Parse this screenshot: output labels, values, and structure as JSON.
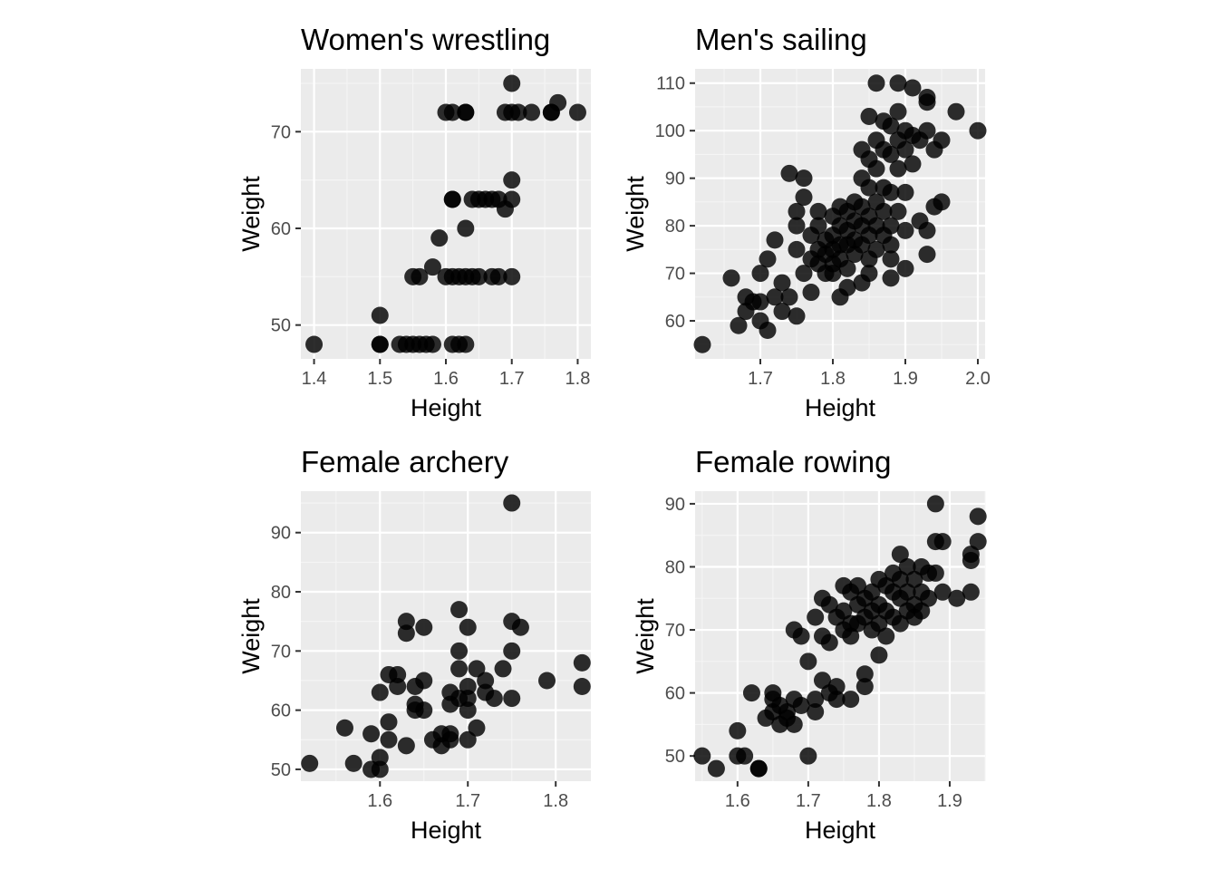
{
  "chart_data": [
    {
      "type": "scatter",
      "title": "Women's wrestling",
      "xlabel": "Height",
      "ylabel": "Weight",
      "xlim": [
        1.38,
        1.82
      ],
      "ylim": [
        46.5,
        76.5
      ],
      "xticks": [
        1.4,
        1.5,
        1.6,
        1.7,
        1.8
      ],
      "yticks": [
        50,
        60,
        70
      ],
      "xtick_labels": [
        "1.4",
        "1.5",
        "1.6",
        "1.7",
        "1.8"
      ],
      "ytick_labels": [
        "50",
        "60",
        "70"
      ],
      "grid": true,
      "points": [
        [
          1.4,
          48
        ],
        [
          1.5,
          48
        ],
        [
          1.5,
          51
        ],
        [
          1.5,
          48
        ],
        [
          1.53,
          48
        ],
        [
          1.54,
          48
        ],
        [
          1.55,
          48
        ],
        [
          1.56,
          48
        ],
        [
          1.57,
          48
        ],
        [
          1.58,
          48
        ],
        [
          1.61,
          48
        ],
        [
          1.62,
          48
        ],
        [
          1.63,
          48
        ],
        [
          1.55,
          55
        ],
        [
          1.56,
          55
        ],
        [
          1.58,
          56
        ],
        [
          1.59,
          59
        ],
        [
          1.6,
          55
        ],
        [
          1.61,
          55
        ],
        [
          1.62,
          55
        ],
        [
          1.63,
          55
        ],
        [
          1.64,
          55
        ],
        [
          1.65,
          55
        ],
        [
          1.67,
          55
        ],
        [
          1.68,
          55
        ],
        [
          1.7,
          55
        ],
        [
          1.63,
          60
        ],
        [
          1.61,
          63
        ],
        [
          1.61,
          63
        ],
        [
          1.64,
          63
        ],
        [
          1.65,
          63
        ],
        [
          1.66,
          63
        ],
        [
          1.67,
          63
        ],
        [
          1.68,
          63
        ],
        [
          1.69,
          62
        ],
        [
          1.7,
          63
        ],
        [
          1.7,
          65
        ],
        [
          1.6,
          72
        ],
        [
          1.61,
          72
        ],
        [
          1.63,
          72
        ],
        [
          1.63,
          72
        ],
        [
          1.69,
          72
        ],
        [
          1.7,
          72
        ],
        [
          1.7,
          75
        ],
        [
          1.71,
          72
        ],
        [
          1.73,
          72
        ],
        [
          1.76,
          72
        ],
        [
          1.76,
          72
        ],
        [
          1.77,
          73
        ],
        [
          1.8,
          72
        ]
      ]
    },
    {
      "type": "scatter",
      "title": "Men's sailing",
      "xlabel": "Height",
      "ylabel": "Weight",
      "xlim": [
        1.61,
        2.01
      ],
      "ylim": [
        52,
        113
      ],
      "xticks": [
        1.7,
        1.8,
        1.9,
        2.0
      ],
      "yticks": [
        60,
        70,
        80,
        90,
        100,
        110
      ],
      "xtick_labels": [
        "1.7",
        "1.8",
        "1.9",
        "2.0"
      ],
      "ytick_labels": [
        "60",
        "70",
        "80",
        "90",
        "100",
        "110"
      ],
      "grid": true,
      "points": [
        [
          1.62,
          55
        ],
        [
          1.66,
          69
        ],
        [
          1.67,
          59
        ],
        [
          1.68,
          62
        ],
        [
          1.68,
          65
        ],
        [
          1.69,
          64
        ],
        [
          1.7,
          60
        ],
        [
          1.7,
          64
        ],
        [
          1.7,
          70
        ],
        [
          1.71,
          58
        ],
        [
          1.71,
          73
        ],
        [
          1.72,
          77
        ],
        [
          1.72,
          65
        ],
        [
          1.73,
          62
        ],
        [
          1.73,
          68
        ],
        [
          1.74,
          65
        ],
        [
          1.74,
          91
        ],
        [
          1.75,
          83
        ],
        [
          1.75,
          80
        ],
        [
          1.75,
          75
        ],
        [
          1.75,
          61
        ],
        [
          1.76,
          90
        ],
        [
          1.76,
          86
        ],
        [
          1.76,
          70
        ],
        [
          1.77,
          78
        ],
        [
          1.77,
          73
        ],
        [
          1.77,
          66
        ],
        [
          1.78,
          83
        ],
        [
          1.78,
          80
        ],
        [
          1.78,
          75
        ],
        [
          1.78,
          72
        ],
        [
          1.79,
          77
        ],
        [
          1.79,
          74
        ],
        [
          1.79,
          70
        ],
        [
          1.8,
          82
        ],
        [
          1.8,
          78
        ],
        [
          1.8,
          75
        ],
        [
          1.8,
          72
        ],
        [
          1.8,
          70
        ],
        [
          1.81,
          84
        ],
        [
          1.81,
          80
        ],
        [
          1.81,
          76
        ],
        [
          1.81,
          73
        ],
        [
          1.81,
          65
        ],
        [
          1.82,
          83
        ],
        [
          1.82,
          79
        ],
        [
          1.82,
          76
        ],
        [
          1.82,
          71
        ],
        [
          1.82,
          67
        ],
        [
          1.83,
          85
        ],
        [
          1.83,
          81
        ],
        [
          1.83,
          77
        ],
        [
          1.83,
          74
        ],
        [
          1.84,
          96
        ],
        [
          1.84,
          90
        ],
        [
          1.84,
          84
        ],
        [
          1.84,
          80
        ],
        [
          1.84,
          76
        ],
        [
          1.84,
          68
        ],
        [
          1.85,
          103
        ],
        [
          1.85,
          94
        ],
        [
          1.85,
          88
        ],
        [
          1.85,
          82
        ],
        [
          1.85,
          78
        ],
        [
          1.85,
          73
        ],
        [
          1.85,
          70
        ],
        [
          1.86,
          110
        ],
        [
          1.86,
          98
        ],
        [
          1.86,
          92
        ],
        [
          1.86,
          85
        ],
        [
          1.86,
          80
        ],
        [
          1.86,
          75
        ],
        [
          1.87,
          102
        ],
        [
          1.87,
          96
        ],
        [
          1.87,
          88
        ],
        [
          1.87,
          83
        ],
        [
          1.87,
          78
        ],
        [
          1.88,
          101
        ],
        [
          1.88,
          95
        ],
        [
          1.88,
          87
        ],
        [
          1.88,
          80
        ],
        [
          1.88,
          76
        ],
        [
          1.88,
          73
        ],
        [
          1.88,
          69
        ],
        [
          1.89,
          110
        ],
        [
          1.89,
          104
        ],
        [
          1.89,
          98
        ],
        [
          1.89,
          92
        ],
        [
          1.89,
          83
        ],
        [
          1.9,
          100
        ],
        [
          1.9,
          96
        ],
        [
          1.9,
          87
        ],
        [
          1.9,
          79
        ],
        [
          1.9,
          71
        ],
        [
          1.91,
          109
        ],
        [
          1.91,
          99
        ],
        [
          1.91,
          93
        ],
        [
          1.92,
          98
        ],
        [
          1.92,
          81
        ],
        [
          1.93,
          107
        ],
        [
          1.93,
          106
        ],
        [
          1.93,
          100
        ],
        [
          1.93,
          79
        ],
        [
          1.93,
          74
        ],
        [
          1.94,
          96
        ],
        [
          1.94,
          84
        ],
        [
          1.95,
          98
        ],
        [
          1.95,
          85
        ],
        [
          1.97,
          104
        ],
        [
          2.0,
          100
        ]
      ]
    },
    {
      "type": "scatter",
      "title": "Female archery",
      "xlabel": "Height",
      "ylabel": "Weight",
      "xlim": [
        1.51,
        1.84
      ],
      "ylim": [
        48,
        97
      ],
      "xticks": [
        1.6,
        1.7,
        1.8
      ],
      "yticks": [
        50,
        60,
        70,
        80,
        90
      ],
      "xtick_labels": [
        "1.6",
        "1.7",
        "1.8"
      ],
      "ytick_labels": [
        "50",
        "60",
        "70",
        "80",
        "90"
      ],
      "grid": true,
      "points": [
        [
          1.52,
          51
        ],
        [
          1.56,
          57
        ],
        [
          1.57,
          51
        ],
        [
          1.59,
          56
        ],
        [
          1.59,
          50
        ],
        [
          1.6,
          63
        ],
        [
          1.6,
          52
        ],
        [
          1.6,
          50
        ],
        [
          1.61,
          66
        ],
        [
          1.61,
          58
        ],
        [
          1.61,
          55
        ],
        [
          1.62,
          66
        ],
        [
          1.62,
          64
        ],
        [
          1.63,
          75
        ],
        [
          1.63,
          73
        ],
        [
          1.63,
          54
        ],
        [
          1.64,
          64
        ],
        [
          1.64,
          61
        ],
        [
          1.64,
          60
        ],
        [
          1.65,
          74
        ],
        [
          1.65,
          65
        ],
        [
          1.65,
          60
        ],
        [
          1.66,
          55
        ],
        [
          1.67,
          56
        ],
        [
          1.67,
          54
        ],
        [
          1.68,
          63
        ],
        [
          1.68,
          61
        ],
        [
          1.68,
          56
        ],
        [
          1.68,
          55
        ],
        [
          1.69,
          77
        ],
        [
          1.69,
          70
        ],
        [
          1.69,
          67
        ],
        [
          1.69,
          62
        ],
        [
          1.7,
          74
        ],
        [
          1.7,
          64
        ],
        [
          1.7,
          62
        ],
        [
          1.7,
          60
        ],
        [
          1.7,
          55
        ],
        [
          1.71,
          67
        ],
        [
          1.71,
          57
        ],
        [
          1.72,
          65
        ],
        [
          1.72,
          63
        ],
        [
          1.73,
          62
        ],
        [
          1.74,
          67
        ],
        [
          1.75,
          95
        ],
        [
          1.75,
          75
        ],
        [
          1.75,
          70
        ],
        [
          1.75,
          62
        ],
        [
          1.76,
          74
        ],
        [
          1.79,
          65
        ],
        [
          1.83,
          68
        ],
        [
          1.83,
          64
        ]
      ]
    },
    {
      "type": "scatter",
      "title": "Female rowing",
      "xlabel": "Height",
      "ylabel": "Weight",
      "xlim": [
        1.54,
        1.95
      ],
      "ylim": [
        46,
        92
      ],
      "xticks": [
        1.6,
        1.7,
        1.8,
        1.9
      ],
      "yticks": [
        50,
        60,
        70,
        80,
        90
      ],
      "xtick_labels": [
        "1.6",
        "1.7",
        "1.8",
        "1.9"
      ],
      "ytick_labels": [
        "50",
        "60",
        "70",
        "80",
        "90"
      ],
      "grid": true,
      "points": [
        [
          1.55,
          50
        ],
        [
          1.57,
          48
        ],
        [
          1.6,
          54
        ],
        [
          1.6,
          50
        ],
        [
          1.61,
          50
        ],
        [
          1.62,
          60
        ],
        [
          1.63,
          48
        ],
        [
          1.63,
          48
        ],
        [
          1.64,
          56
        ],
        [
          1.65,
          60
        ],
        [
          1.65,
          59
        ],
        [
          1.65,
          57
        ],
        [
          1.66,
          58
        ],
        [
          1.66,
          55
        ],
        [
          1.67,
          57
        ],
        [
          1.67,
          56
        ],
        [
          1.68,
          70
        ],
        [
          1.68,
          59
        ],
        [
          1.68,
          55
        ],
        [
          1.69,
          58
        ],
        [
          1.69,
          69
        ],
        [
          1.7,
          65
        ],
        [
          1.7,
          50
        ],
        [
          1.71,
          59
        ],
        [
          1.71,
          57
        ],
        [
          1.71,
          72
        ],
        [
          1.72,
          75
        ],
        [
          1.72,
          69
        ],
        [
          1.72,
          62
        ],
        [
          1.73,
          74
        ],
        [
          1.73,
          68
        ],
        [
          1.73,
          60
        ],
        [
          1.74,
          72
        ],
        [
          1.74,
          61
        ],
        [
          1.74,
          59
        ],
        [
          1.75,
          77
        ],
        [
          1.75,
          73
        ],
        [
          1.75,
          70
        ],
        [
          1.76,
          76
        ],
        [
          1.76,
          71
        ],
        [
          1.76,
          69
        ],
        [
          1.76,
          59
        ],
        [
          1.77,
          77
        ],
        [
          1.77,
          74
        ],
        [
          1.77,
          71
        ],
        [
          1.78,
          75
        ],
        [
          1.78,
          72
        ],
        [
          1.78,
          63
        ],
        [
          1.78,
          61
        ],
        [
          1.79,
          76
        ],
        [
          1.79,
          73
        ],
        [
          1.79,
          70
        ],
        [
          1.8,
          78
        ],
        [
          1.8,
          74
        ],
        [
          1.8,
          71
        ],
        [
          1.8,
          66
        ],
        [
          1.81,
          77
        ],
        [
          1.81,
          73
        ],
        [
          1.81,
          69
        ],
        [
          1.82,
          79
        ],
        [
          1.82,
          76
        ],
        [
          1.82,
          72
        ],
        [
          1.83,
          82
        ],
        [
          1.83,
          78
        ],
        [
          1.83,
          75
        ],
        [
          1.83,
          71
        ],
        [
          1.84,
          80
        ],
        [
          1.84,
          76
        ],
        [
          1.84,
          73
        ],
        [
          1.85,
          78
        ],
        [
          1.85,
          74
        ],
        [
          1.85,
          72
        ],
        [
          1.86,
          80
        ],
        [
          1.86,
          76
        ],
        [
          1.86,
          73
        ],
        [
          1.87,
          79
        ],
        [
          1.87,
          75
        ],
        [
          1.88,
          90
        ],
        [
          1.88,
          84
        ],
        [
          1.88,
          79
        ],
        [
          1.89,
          84
        ],
        [
          1.89,
          76
        ],
        [
          1.91,
          75
        ],
        [
          1.93,
          82
        ],
        [
          1.93,
          81
        ],
        [
          1.93,
          76
        ],
        [
          1.94,
          88
        ],
        [
          1.94,
          84
        ]
      ]
    }
  ]
}
